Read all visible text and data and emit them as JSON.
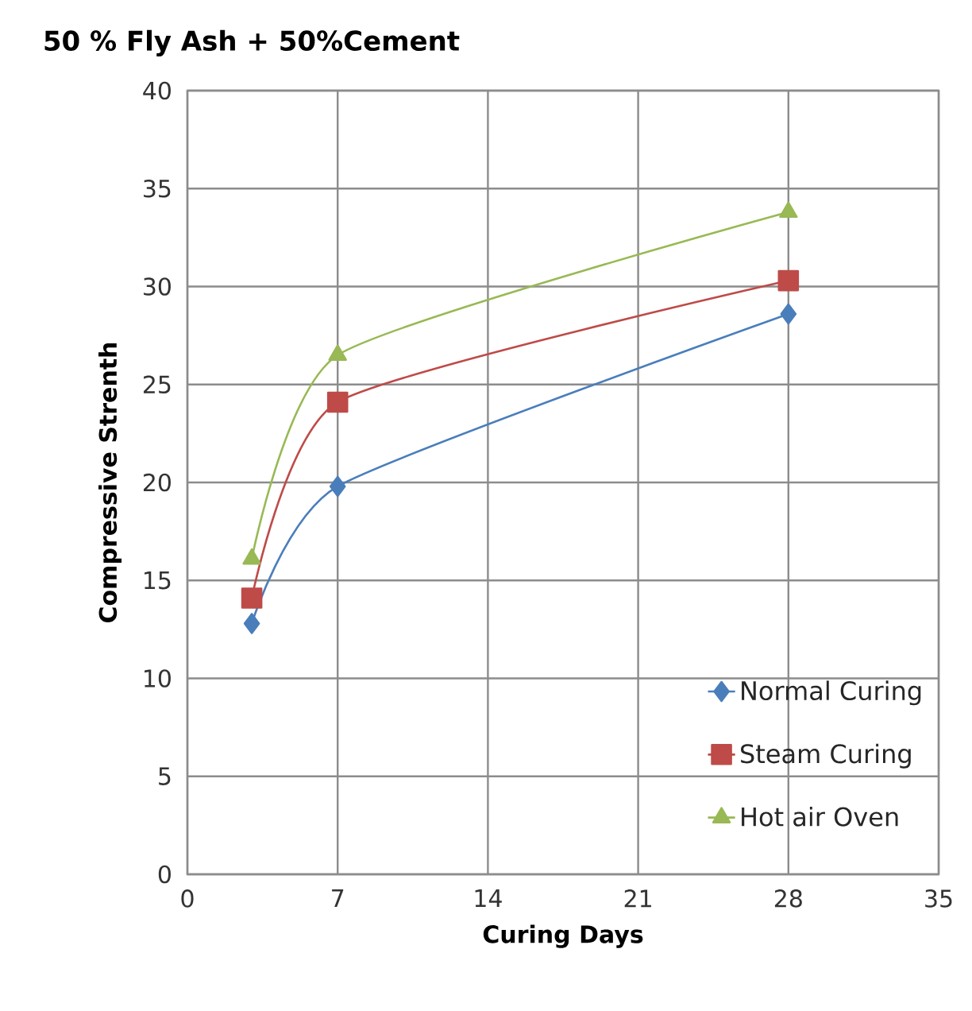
{
  "chart_data": {
    "type": "line",
    "title": "50 % Fly Ash + 50%Cement",
    "xlabel": "Curing Days",
    "ylabel": "Compressive Strenth",
    "x": [
      3,
      7,
      28
    ],
    "series": [
      {
        "name": "Normal Curing",
        "color": "#4a7ebb",
        "marker": "diamond",
        "values": [
          12.8,
          19.8,
          28.6
        ]
      },
      {
        "name": "Steam Curing",
        "color": "#be4b48",
        "marker": "square",
        "values": [
          14.1,
          24.1,
          30.3
        ]
      },
      {
        "name": "Hot air Oven",
        "color": "#98b954",
        "marker": "triangle",
        "values": [
          16.1,
          26.5,
          33.8
        ]
      }
    ],
    "xlim": [
      0,
      35
    ],
    "xticks": [
      0,
      7,
      14,
      21,
      28,
      35
    ],
    "ylim": [
      0,
      40
    ],
    "yticks": [
      0,
      5,
      10,
      15,
      20,
      25,
      30,
      35,
      40
    ],
    "grid": true,
    "legend": "bottom right",
    "line_style": "solid"
  }
}
